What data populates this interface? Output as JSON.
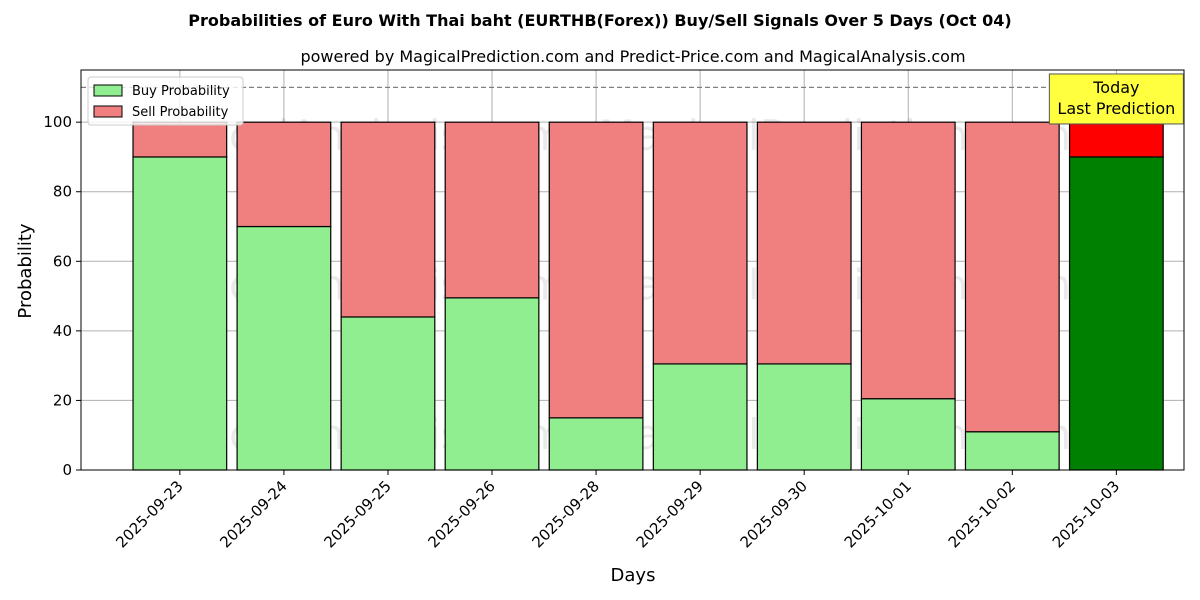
{
  "chart_data": {
    "type": "bar",
    "stacked": true,
    "title": "Probabilities of Euro With Thai baht (EURTHB(Forex)) Buy/Sell Signals Over 5 Days (Oct 04)",
    "subtitle": "powered by MagicalPrediction.com and Predict-Price.com and MagicalAnalysis.com",
    "xlabel": "Days",
    "ylabel": "Probability",
    "ylim": [
      0,
      115
    ],
    "yticks": [
      0,
      20,
      40,
      60,
      80,
      100
    ],
    "reference_line": 110,
    "grid": true,
    "legend_position": "top-left",
    "categories": [
      "2025-09-23",
      "2025-09-24",
      "2025-09-25",
      "2025-09-26",
      "2025-09-28",
      "2025-09-29",
      "2025-09-30",
      "2025-10-01",
      "2025-10-02",
      "2025-10-03"
    ],
    "series": [
      {
        "name": "Buy Probability",
        "values": [
          90,
          70,
          44,
          49.5,
          15,
          30.5,
          30.5,
          20.5,
          11,
          90
        ],
        "color": "#90ee90",
        "highlight_color": "#008000"
      },
      {
        "name": "Sell Probability",
        "values": [
          10,
          30,
          56,
          50.5,
          85,
          69.5,
          69.5,
          79.5,
          89,
          10
        ],
        "color": "#f08080",
        "highlight_color": "#ff0000"
      }
    ],
    "highlight_index": 9,
    "annotation": {
      "line1": "Today",
      "line2": "Last Prediction",
      "color": "#ffff40"
    },
    "watermarks": [
      "MagicalAnalysis.com",
      "MagicalPrediction.com"
    ]
  }
}
